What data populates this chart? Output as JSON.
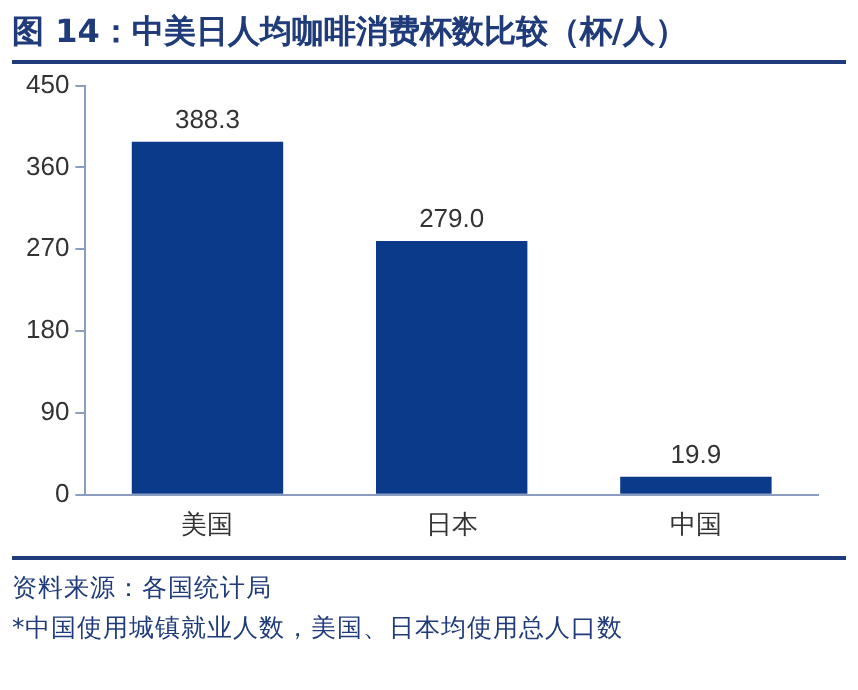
{
  "chart_data": {
    "type": "bar",
    "title": "图 14：中美日人均咖啡消费杯数比较（杯/人）",
    "categories": [
      "美国",
      "日本",
      "中国"
    ],
    "values": [
      388.3,
      279.0,
      19.9
    ],
    "value_labels": [
      "388.3",
      "279.0",
      "19.9"
    ],
    "color": "#0c3a8a",
    "ylim": [
      0,
      450
    ],
    "yticks": [
      0,
      90,
      180,
      270,
      360,
      450
    ],
    "grid": false,
    "annotations": [
      "资料来源：各国统计局",
      "*中国使用城镇就业人数，美国、日本均使用总人口数"
    ]
  }
}
